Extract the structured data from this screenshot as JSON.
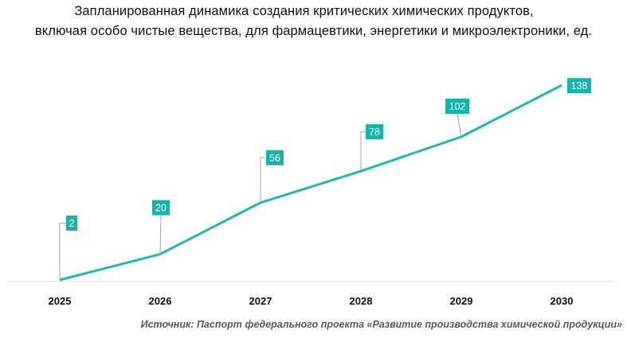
{
  "chart_data": {
    "type": "line",
    "title_lines": [
      "Запланированная динамика создания критических химических продуктов,",
      "включая особо чистые вещества, для фармацевтики, энергетики и микроэлектроники, ед."
    ],
    "categories": [
      "2025",
      "2026",
      "2027",
      "2028",
      "2029",
      "2030"
    ],
    "values": [
      2,
      20,
      56,
      78,
      102,
      138
    ],
    "data_labels": [
      "2",
      "20",
      "56",
      "78",
      "102",
      "138"
    ],
    "xlabel": "",
    "ylabel": "",
    "ylim": [
      0,
      140
    ],
    "grid": false,
    "legend": "none",
    "colors": {
      "line": "#1abab0",
      "label_bg": "#13b5ab",
      "axis": "#d9d9d9",
      "leader": "#a6a6a6"
    }
  },
  "source": "Источник: Паспорт федерального проекта «Развитие производства химической продукции»"
}
